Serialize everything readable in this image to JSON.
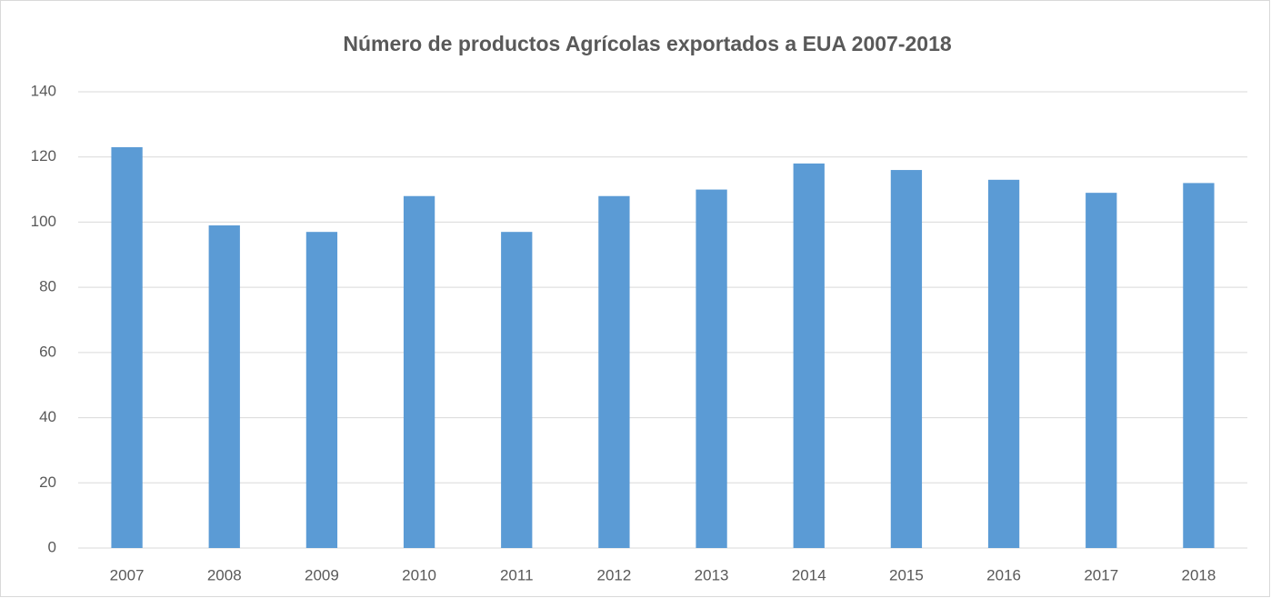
{
  "chart_data": {
    "type": "bar",
    "title": "Número de productos Agrícolas exportados a EUA 2007-2018",
    "categories": [
      "2007",
      "2008",
      "2009",
      "2010",
      "2011",
      "2012",
      "2013",
      "2014",
      "2015",
      "2016",
      "2017",
      "2018"
    ],
    "values": [
      123,
      99,
      97,
      108,
      97,
      108,
      110,
      118,
      116,
      113,
      109,
      112
    ],
    "color": "#5b9bd5",
    "ylim": [
      0,
      140
    ],
    "yticks": [
      0,
      20,
      40,
      60,
      80,
      100,
      120,
      140
    ],
    "grid": true
  }
}
